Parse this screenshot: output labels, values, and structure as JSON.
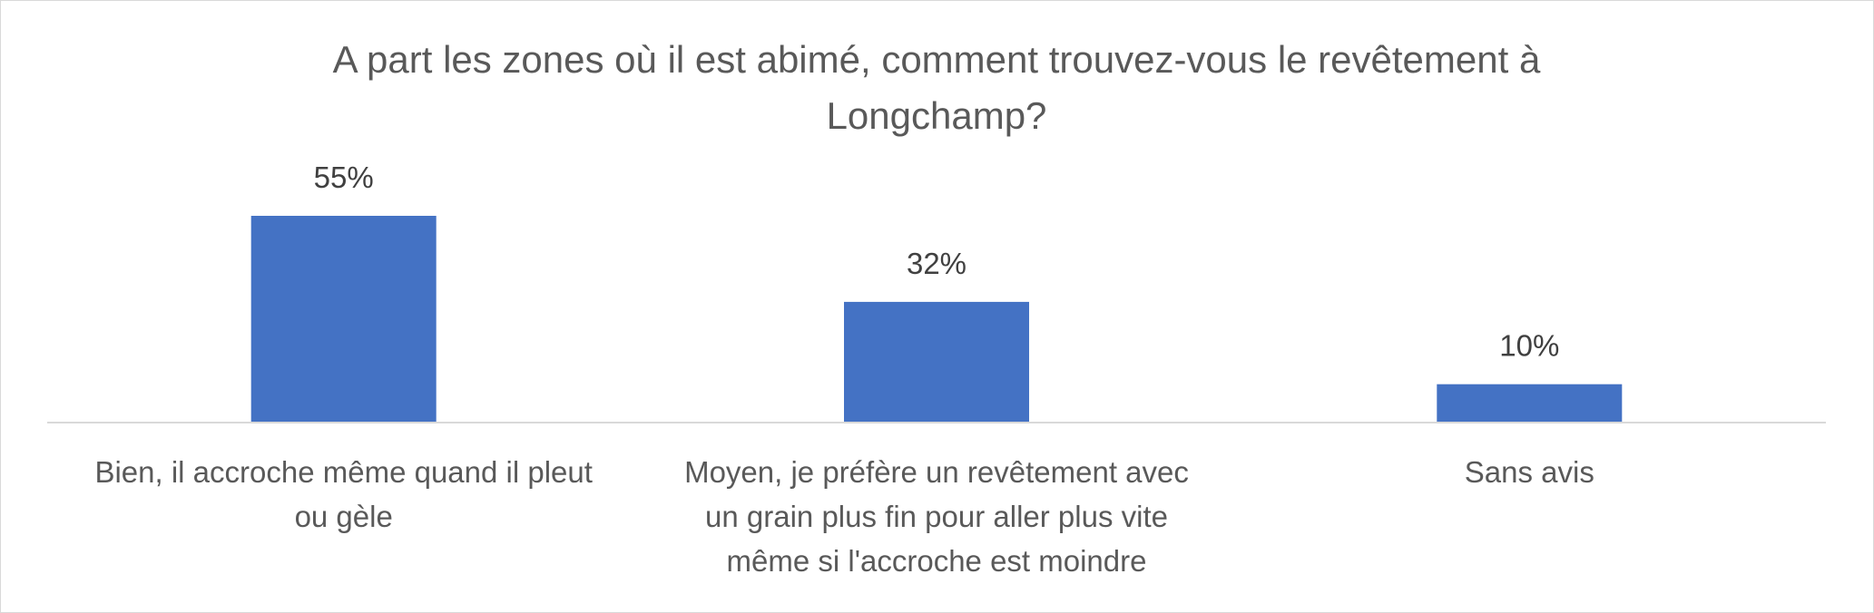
{
  "chart_data": {
    "type": "bar",
    "title_lines": [
      "A part les zones où il est abimé, comment trouvez-vous le revêtement à",
      "Longchamp?"
    ],
    "categories": [
      "Bien, il accroche même quand il pleut ou gèle",
      "Moyen, je préfère un revêtement avec un grain plus fin pour aller plus vite même si l'accroche est moindre",
      "Sans avis"
    ],
    "category_label_lines": [
      [
        "Bien, il accroche même quand il pleut",
        "ou gèle"
      ],
      [
        "Moyen, je préfère un revêtement avec",
        "un grain plus fin pour aller plus vite",
        "même si l'accroche est moindre"
      ],
      [
        "Sans avis"
      ]
    ],
    "values": [
      55,
      32,
      10
    ],
    "data_labels": [
      "55%",
      "32%",
      "10%"
    ],
    "unit": "%",
    "ylim": [
      0,
      55
    ],
    "bar_color": "#4472c4",
    "axis_color": "#d9d9d9",
    "grid": false,
    "legend": "none"
  }
}
